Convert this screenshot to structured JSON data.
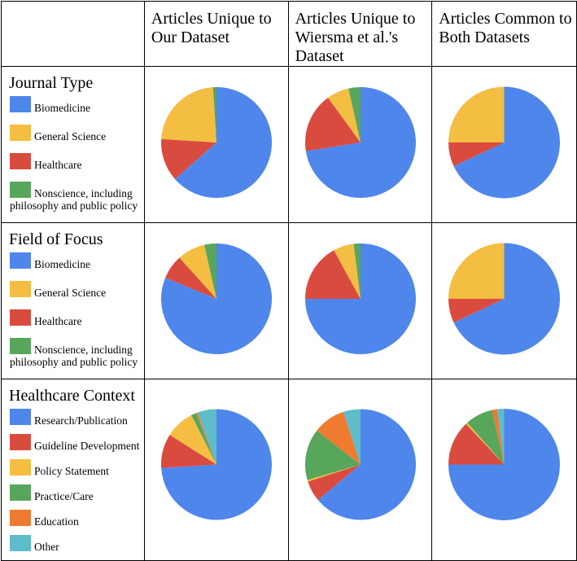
{
  "header": {
    "empty": "",
    "columns": [
      "Articles Unique to Our Dataset",
      "Articles Unique to Wiersma et al.'s Dataset",
      "Articles Common to Both Datasets"
    ]
  },
  "rows": [
    {
      "title": "Journal Type",
      "legend": [
        {
          "label": "Biomedicine",
          "color": "#4F86EC"
        },
        {
          "label": "General Science",
          "color": "#F3BE42"
        },
        {
          "label": "Healthcare",
          "color": "#DA4B3F"
        },
        {
          "label_line1": "Nonscience, including",
          "label_line2": "philosophy and public policy",
          "color": "#58A65C"
        }
      ]
    },
    {
      "title": "Field of Focus",
      "legend": [
        {
          "label": "Biomedicine",
          "color": "#4F86EC"
        },
        {
          "label": "General Science",
          "color": "#F3BE42"
        },
        {
          "label": "Healthcare",
          "color": "#DA4B3F"
        },
        {
          "label_line1": "Nonscience, including",
          "label_line2": "philosophy and public policy",
          "color": "#58A65C"
        }
      ]
    },
    {
      "title": "Healthcare Context",
      "legend": [
        {
          "label": "Research/Publication",
          "color": "#4F86EC"
        },
        {
          "label": "Guideline Development",
          "color": "#DA4B3F"
        },
        {
          "label": "Policy Statement",
          "color": "#F3BE42"
        },
        {
          "label": "Practice/Care",
          "color": "#58A65C"
        },
        {
          "label": "Education",
          "color": "#EE7B30"
        },
        {
          "label": "Other",
          "color": "#5EBCCB"
        }
      ]
    }
  ],
  "chart_data": [
    {
      "type": "pie",
      "row": "Journal Type",
      "column": "Articles Unique to Our Dataset",
      "slices": [
        {
          "name": "Biomedicine",
          "value": 63.5,
          "color": "#4F86EC"
        },
        {
          "name": "Healthcare",
          "value": 12.5,
          "color": "#DA4B3F"
        },
        {
          "name": "General Science",
          "value": 23.0,
          "color": "#F3BE42"
        },
        {
          "name": "Nonscience, including philosophy and public policy",
          "value": 1.0,
          "color": "#58A65C"
        }
      ]
    },
    {
      "type": "pie",
      "row": "Journal Type",
      "column": "Articles Unique to Wiersma et al.'s Dataset",
      "slices": [
        {
          "name": "Biomedicine",
          "value": 72.5,
          "color": "#4F86EC"
        },
        {
          "name": "Healthcare",
          "value": 17.5,
          "color": "#DA4B3F"
        },
        {
          "name": "General Science",
          "value": 6.5,
          "color": "#F3BE42"
        },
        {
          "name": "Nonscience, including philosophy and public policy",
          "value": 3.5,
          "color": "#58A65C"
        }
      ]
    },
    {
      "type": "pie",
      "row": "Journal Type",
      "column": "Articles Common to Both Datasets",
      "slices": [
        {
          "name": "Biomedicine",
          "value": 68,
          "color": "#4F86EC"
        },
        {
          "name": "Healthcare",
          "value": 7,
          "color": "#DA4B3F"
        },
        {
          "name": "General Science",
          "value": 25,
          "color": "#F3BE42"
        }
      ]
    },
    {
      "type": "pie",
      "row": "Field of Focus",
      "column": "Articles Unique to Our Dataset",
      "slices": [
        {
          "name": "Biomedicine",
          "value": 80,
          "color": "#4F86EC"
        },
        {
          "name": "Healthcare",
          "value": 7,
          "color": "#DA4B3F"
        },
        {
          "name": "General Science",
          "value": 8,
          "color": "#F3BE42"
        },
        {
          "name": "Nonscience, including philosophy and public policy",
          "value": 3.5,
          "color": "#58A65C"
        }
      ]
    },
    {
      "type": "pie",
      "row": "Field of Focus",
      "column": "Articles Unique to Wiersma et al.'s Dataset",
      "slices": [
        {
          "name": "Biomedicine",
          "value": 75,
          "color": "#4F86EC"
        },
        {
          "name": "Healthcare",
          "value": 17,
          "color": "#DA4B3F"
        },
        {
          "name": "General Science",
          "value": 6,
          "color": "#F3BE42"
        },
        {
          "name": "Nonscience, including philosophy and public policy",
          "value": 2,
          "color": "#58A65C"
        }
      ]
    },
    {
      "type": "pie",
      "row": "Field of Focus",
      "column": "Articles Common to Both Datasets",
      "slices": [
        {
          "name": "Biomedicine",
          "value": 68,
          "color": "#4F86EC"
        },
        {
          "name": "Healthcare",
          "value": 7,
          "color": "#DA4B3F"
        },
        {
          "name": "General Science",
          "value": 25,
          "color": "#F3BE42"
        }
      ]
    },
    {
      "type": "pie",
      "row": "Healthcare Context",
      "column": "Articles Unique to Our Dataset",
      "slices": [
        {
          "name": "Research/Publication",
          "value": 74,
          "color": "#4F86EC"
        },
        {
          "name": "Guideline Development",
          "value": 10,
          "color": "#DA4B3F"
        },
        {
          "name": "Policy Statement",
          "value": 8.5,
          "color": "#F3BE42"
        },
        {
          "name": "Practice/Care",
          "value": 1.5,
          "color": "#58A65C"
        },
        {
          "name": "Education",
          "value": 0.5,
          "color": "#EE7B30"
        },
        {
          "name": "Other",
          "value": 5.5,
          "color": "#5EBCCB"
        }
      ]
    },
    {
      "type": "pie",
      "row": "Healthcare Context",
      "column": "Articles Unique to Wiersma et al.'s Dataset",
      "slices": [
        {
          "name": "Research/Publication",
          "value": 64,
          "color": "#4F86EC"
        },
        {
          "name": "Guideline Development",
          "value": 6,
          "color": "#DA4B3F"
        },
        {
          "name": "Policy Statement",
          "value": 0.5,
          "color": "#F3BE42"
        },
        {
          "name": "Practice/Care",
          "value": 15,
          "color": "#58A65C"
        },
        {
          "name": "Education",
          "value": 9.5,
          "color": "#EE7B30"
        },
        {
          "name": "Other",
          "value": 5,
          "color": "#5EBCCB"
        }
      ]
    },
    {
      "type": "pie",
      "row": "Healthcare Context",
      "column": "Articles Common to Both Datasets",
      "slices": [
        {
          "name": "Research/Publication",
          "value": 75,
          "color": "#4F86EC"
        },
        {
          "name": "Guideline Development",
          "value": 13,
          "color": "#DA4B3F"
        },
        {
          "name": "Policy Statement",
          "value": 0.5,
          "color": "#F3BE42"
        },
        {
          "name": "Practice/Care",
          "value": 8,
          "color": "#58A65C"
        },
        {
          "name": "Education",
          "value": 1.5,
          "color": "#EE7B30"
        },
        {
          "name": "Other",
          "value": 2,
          "color": "#5EBCCB"
        }
      ]
    }
  ]
}
